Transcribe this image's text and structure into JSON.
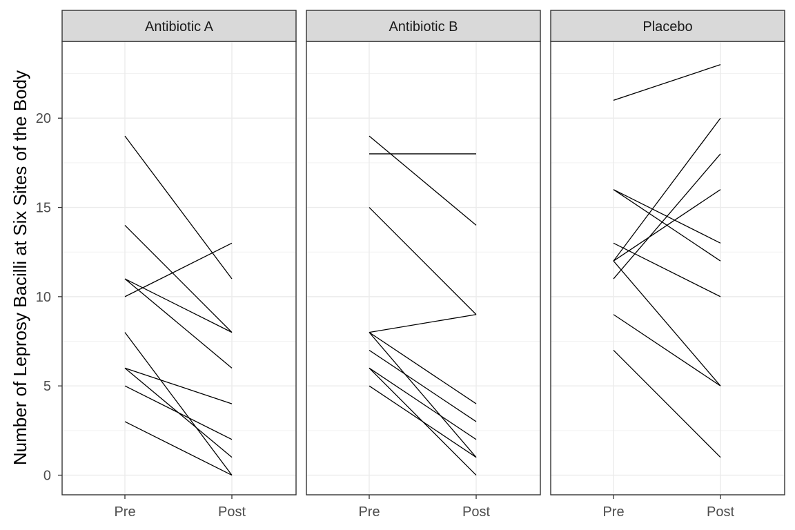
{
  "chart_data": {
    "type": "line",
    "ylabel": "Number of Leprosy Bacilli at Six Sites of the Body",
    "xlabel": "",
    "x_categories": [
      "Pre",
      "Post"
    ],
    "ylim": [
      -1.1,
      24.3
    ],
    "yticks": [
      0,
      5,
      10,
      15,
      20
    ],
    "grid": true,
    "line_color": "#000000",
    "panels": [
      {
        "name": "Antibiotic A",
        "lines": [
          {
            "pre": 19,
            "post": 11
          },
          {
            "pre": 14,
            "post": 8
          },
          {
            "pre": 11,
            "post": 8
          },
          {
            "pre": 11,
            "post": 6
          },
          {
            "pre": 10,
            "post": 13
          },
          {
            "pre": 8,
            "post": 0
          },
          {
            "pre": 6,
            "post": 4
          },
          {
            "pre": 6,
            "post": 1
          },
          {
            "pre": 5,
            "post": 2
          },
          {
            "pre": 3,
            "post": 0
          }
        ]
      },
      {
        "name": "Antibiotic B",
        "lines": [
          {
            "pre": 19,
            "post": 14
          },
          {
            "pre": 18,
            "post": 18
          },
          {
            "pre": 15,
            "post": 9
          },
          {
            "pre": 8,
            "post": 9
          },
          {
            "pre": 8,
            "post": 1
          },
          {
            "pre": 8,
            "post": 4
          },
          {
            "pre": 7,
            "post": 3
          },
          {
            "pre": 6,
            "post": 2
          },
          {
            "pre": 6,
            "post": 0
          },
          {
            "pre": 5,
            "post": 1
          }
        ]
      },
      {
        "name": "Placebo",
        "lines": [
          {
            "pre": 21,
            "post": 23
          },
          {
            "pre": 16,
            "post": 13
          },
          {
            "pre": 16,
            "post": 12
          },
          {
            "pre": 13,
            "post": 10
          },
          {
            "pre": 12,
            "post": 20
          },
          {
            "pre": 12,
            "post": 16
          },
          {
            "pre": 12,
            "post": 5
          },
          {
            "pre": 11,
            "post": 18
          },
          {
            "pre": 9,
            "post": 5
          },
          {
            "pre": 7,
            "post": 1
          }
        ]
      }
    ]
  }
}
